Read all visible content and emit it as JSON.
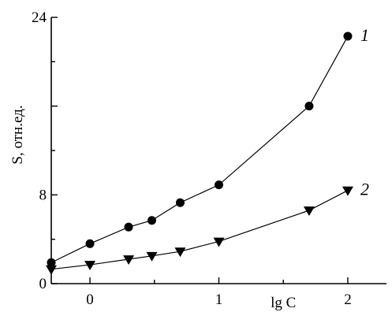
{
  "chart_data": {
    "type": "line",
    "title": "",
    "xlabel": "lg C",
    "ylabel": "S, отн.ед.",
    "xlim": [
      -0.3,
      2.3
    ],
    "ylim": [
      0,
      24
    ],
    "x_ticks": [
      {
        "value": 0,
        "label": "0"
      },
      {
        "value": 1,
        "label": "1"
      },
      {
        "value": 2,
        "label": "2"
      }
    ],
    "y_ticks": [
      {
        "value": 0,
        "label": "0"
      },
      {
        "value": 8,
        "label": "8"
      },
      {
        "value": 16,
        "label": ""
      },
      {
        "value": 24,
        "label": "24"
      }
    ],
    "grid": false,
    "series": [
      {
        "name": "1",
        "marker": "circle",
        "x": [
          -0.3,
          0.0,
          0.3,
          0.48,
          0.7,
          1.0,
          1.7,
          2.0
        ],
        "y": [
          1.9,
          3.6,
          5.1,
          5.7,
          7.3,
          8.9,
          16.0,
          22.3
        ]
      },
      {
        "name": "2",
        "marker": "triangle-down",
        "x": [
          -0.3,
          0.0,
          0.3,
          0.48,
          0.7,
          1.0,
          1.7,
          2.0
        ],
        "y": [
          1.3,
          1.7,
          2.2,
          2.5,
          2.9,
          3.8,
          6.6,
          8.4
        ]
      }
    ]
  }
}
